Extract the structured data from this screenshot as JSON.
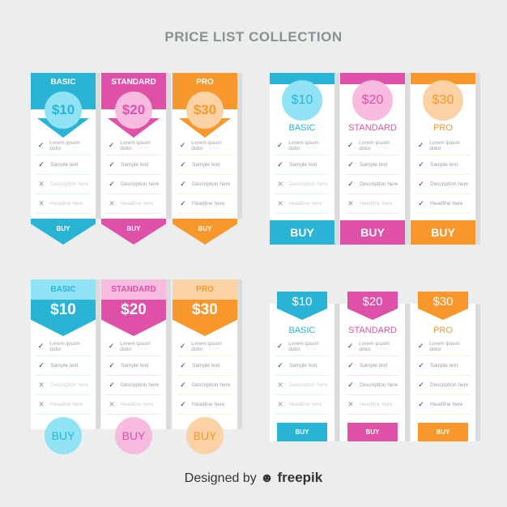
{
  "title": "PRICE LIST COLLECTION",
  "colors": {
    "basic": {
      "main": "#29b4d6",
      "light": "#90e3f4",
      "line": "#dff5fb"
    },
    "standard": {
      "main": "#df50a9",
      "light": "#f8bbe0",
      "line": "#fbe3f1"
    },
    "pro": {
      "main": "#f7972c",
      "light": "#fbd2a5",
      "line": "#fdeedd"
    }
  },
  "sets": [
    {
      "style": "banner-circle-arrow",
      "buy": "BUY"
    },
    {
      "style": "circle-top-button",
      "buy": "BUY"
    },
    {
      "style": "ribbon-circle-button",
      "buy": "BUY"
    },
    {
      "style": "tag-button",
      "buy": "BUY"
    }
  ],
  "plans": [
    {
      "key": "basic",
      "name": "BASIC",
      "price": "$10",
      "features": [
        {
          "text": "Lorem ipsum dolor",
          "included": true
        },
        {
          "text": "Sample text",
          "included": true
        },
        {
          "text": "Description here",
          "included": false
        },
        {
          "text": "Headline here",
          "included": false
        }
      ]
    },
    {
      "key": "standard",
      "name": "STANDARD",
      "price": "$20",
      "features": [
        {
          "text": "Lorem ipsum dolor",
          "included": true
        },
        {
          "text": "Sample text",
          "included": true
        },
        {
          "text": "Description here",
          "included": true
        },
        {
          "text": "Headline here",
          "included": false
        }
      ]
    },
    {
      "key": "pro",
      "name": "PRO",
      "price": "$30",
      "features": [
        {
          "text": "Lorem ipsum dolor",
          "included": true
        },
        {
          "text": "Sample text",
          "included": true
        },
        {
          "text": "Description here",
          "included": true
        },
        {
          "text": "Headline here",
          "included": true
        }
      ]
    }
  ],
  "footer": {
    "prefix": "Designed by",
    "brand": "freepik"
  }
}
